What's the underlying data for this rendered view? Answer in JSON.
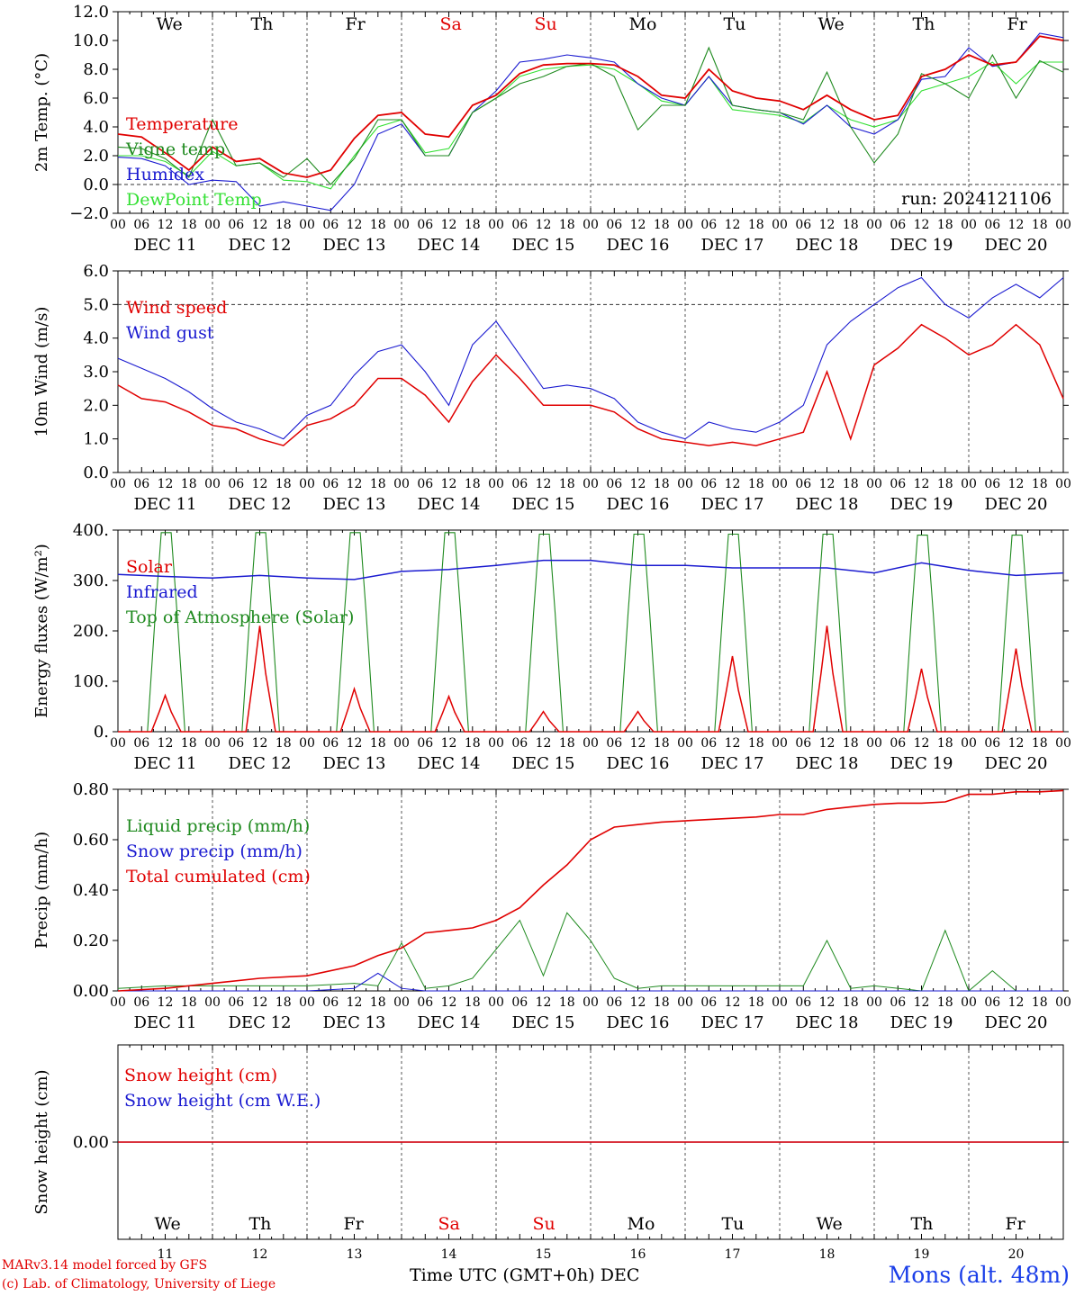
{
  "colors": {
    "red": "#e00000",
    "darkgreen": "#1f8a1f",
    "blue": "#1a1ad0",
    "lightgreen": "#33e033",
    "axis": "#000000"
  },
  "day_letters": [
    "We",
    "Th",
    "Fr",
    "Sa",
    "Su",
    "Mo",
    "Tu",
    "We",
    "Th",
    "Fr"
  ],
  "weekend_days": [
    "Sa",
    "Su"
  ],
  "date_labels": [
    "DEC 11",
    "DEC 12",
    "DEC 13",
    "DEC 14",
    "DEC 15",
    "DEC 16",
    "DEC 17",
    "DEC 18",
    "DEC 19",
    "DEC 20"
  ],
  "hour_ticks": [
    "00",
    "06",
    "12",
    "18"
  ],
  "footer": {
    "model": "MARv3.14 model forced by GFS",
    "lab": "(c) Lab. of Climatology, University of Liege",
    "time_axis": "Time UTC (GMT+0h)",
    "month": "DEC",
    "station": "Mons (alt. 48m)",
    "day_numbers": [
      "11",
      "12",
      "13",
      "14",
      "15",
      "16",
      "17",
      "18",
      "19",
      "20"
    ]
  },
  "chart_data": [
    {
      "type": "line",
      "ylabel": "2m Temp. (°C)",
      "ylim": [
        -2,
        12
      ],
      "yticks": [
        "12.0",
        "10.0",
        "8.0",
        "6.0",
        "4.0",
        "2.0",
        "0.0",
        "−2.0"
      ],
      "dashed_ref": 0,
      "annotation": "run: 2024121106",
      "series": [
        {
          "name": "Temperature",
          "color": "red",
          "x": [
            0,
            6,
            12,
            18,
            24,
            30,
            36,
            42,
            48,
            54,
            60,
            66,
            72,
            78,
            84,
            90,
            96,
            102,
            108,
            114,
            120,
            126,
            132,
            138,
            144,
            150,
            156,
            162,
            168,
            174,
            180,
            186,
            192,
            198,
            204,
            210,
            216,
            222,
            228,
            234,
            240
          ],
          "values": [
            3.5,
            3.3,
            2.2,
            1.0,
            2.6,
            1.6,
            1.8,
            0.8,
            0.5,
            1.0,
            3.2,
            4.8,
            5.0,
            3.5,
            3.3,
            5.5,
            6.2,
            7.7,
            8.3,
            8.4,
            8.4,
            8.3,
            7.5,
            6.2,
            6.0,
            8.0,
            6.5,
            6.0,
            5.8,
            5.2,
            6.2,
            5.2,
            4.5,
            4.8,
            7.5,
            8.0,
            9.0,
            8.3,
            8.5,
            10.3,
            10.0
          ]
        },
        {
          "name": "Vigne temp",
          "color": "darkgreen",
          "x": [
            0,
            6,
            12,
            18,
            24,
            30,
            36,
            42,
            48,
            54,
            60,
            66,
            72,
            78,
            84,
            90,
            96,
            102,
            108,
            114,
            120,
            126,
            132,
            138,
            144,
            150,
            156,
            162,
            168,
            174,
            180,
            186,
            192,
            198,
            204,
            210,
            216,
            222,
            228,
            234,
            240
          ],
          "values": [
            2.6,
            2.5,
            1.8,
            0.5,
            4.5,
            1.3,
            1.5,
            0.5,
            1.8,
            0.0,
            1.8,
            4.5,
            4.5,
            2.0,
            2.0,
            5.0,
            6.0,
            7.0,
            7.5,
            8.2,
            8.4,
            7.5,
            3.8,
            5.5,
            5.5,
            9.5,
            5.5,
            5.2,
            5.0,
            4.5,
            7.8,
            4.0,
            1.5,
            3.5,
            7.7,
            7.0,
            6.0,
            9.0,
            6.0,
            8.6,
            7.8
          ]
        },
        {
          "name": "Humidex",
          "color": "blue",
          "x": [
            0,
            6,
            12,
            18,
            24,
            30,
            36,
            42,
            48,
            54,
            60,
            66,
            72,
            78,
            84,
            90,
            96,
            102,
            108,
            114,
            120,
            126,
            132,
            138,
            144,
            150,
            156,
            162,
            168,
            174,
            180,
            186,
            192,
            198,
            204,
            210,
            216,
            222,
            228,
            234,
            240
          ],
          "values": [
            1.9,
            1.8,
            1.3,
            0.0,
            0.3,
            0.2,
            -1.5,
            -1.2,
            -1.5,
            -1.8,
            0.0,
            3.5,
            4.2,
            2.0,
            2.0,
            5.0,
            6.5,
            8.5,
            8.7,
            9.0,
            8.8,
            8.5,
            7.0,
            6.0,
            5.5,
            7.5,
            5.5,
            5.2,
            5.0,
            4.2,
            5.5,
            4.0,
            3.5,
            4.5,
            7.3,
            7.5,
            9.5,
            8.2,
            8.5,
            10.5,
            10.2
          ]
        },
        {
          "name": "DewPoint Temp",
          "color": "lightgreen",
          "x": [
            0,
            6,
            12,
            18,
            24,
            30,
            36,
            42,
            48,
            54,
            60,
            66,
            72,
            78,
            84,
            90,
            96,
            102,
            108,
            114,
            120,
            126,
            132,
            138,
            144,
            150,
            156,
            162,
            168,
            174,
            180,
            186,
            192,
            198,
            204,
            210,
            216,
            222,
            228,
            234,
            240
          ],
          "values": [
            2.0,
            2.0,
            1.6,
            0.6,
            2.3,
            1.3,
            1.5,
            0.3,
            0.2,
            -0.3,
            2.0,
            4.0,
            4.5,
            2.2,
            2.5,
            5.0,
            6.0,
            7.5,
            8.0,
            8.2,
            8.3,
            8.0,
            7.0,
            5.8,
            5.5,
            7.5,
            5.2,
            5.0,
            4.8,
            4.3,
            5.5,
            4.5,
            4.0,
            4.5,
            6.5,
            7.0,
            7.5,
            8.5,
            7.0,
            8.5,
            8.5
          ]
        }
      ]
    },
    {
      "type": "line",
      "ylabel": "10m Wind (m/s)",
      "ylim": [
        0,
        6
      ],
      "yticks": [
        "6.0",
        "5.0",
        "4.0",
        "3.0",
        "2.0",
        "1.0",
        "0.0"
      ],
      "dashed_ref": 5,
      "series": [
        {
          "name": "Wind speed",
          "color": "red",
          "x": [
            0,
            6,
            12,
            18,
            24,
            30,
            36,
            42,
            48,
            54,
            60,
            66,
            72,
            78,
            84,
            90,
            96,
            102,
            108,
            114,
            120,
            126,
            132,
            138,
            144,
            150,
            156,
            162,
            168,
            174,
            180,
            186,
            192,
            198,
            204,
            210,
            216,
            222,
            228,
            234,
            240
          ],
          "values": [
            2.6,
            2.2,
            2.1,
            1.8,
            1.4,
            1.3,
            1.0,
            0.8,
            1.4,
            1.6,
            2.0,
            2.8,
            2.8,
            2.3,
            1.5,
            2.7,
            3.5,
            2.8,
            2.0,
            2.0,
            2.0,
            1.8,
            1.3,
            1.0,
            0.9,
            0.8,
            0.9,
            0.8,
            1.0,
            1.2,
            3.0,
            1.0,
            3.2,
            3.7,
            4.4,
            4.0,
            3.5,
            3.8,
            4.4,
            3.8,
            2.2
          ]
        },
        {
          "name": "Wind gust",
          "color": "blue",
          "x": [
            0,
            6,
            12,
            18,
            24,
            30,
            36,
            42,
            48,
            54,
            60,
            66,
            72,
            78,
            84,
            90,
            96,
            102,
            108,
            114,
            120,
            126,
            132,
            138,
            144,
            150,
            156,
            162,
            168,
            174,
            180,
            186,
            192,
            198,
            204,
            210,
            216,
            222,
            228,
            234,
            240
          ],
          "values": [
            3.4,
            3.1,
            2.8,
            2.4,
            1.9,
            1.5,
            1.3,
            1.0,
            1.7,
            2.0,
            2.9,
            3.6,
            3.8,
            3.0,
            2.0,
            3.8,
            4.5,
            3.5,
            2.5,
            2.6,
            2.5,
            2.2,
            1.5,
            1.2,
            1.0,
            1.5,
            1.3,
            1.2,
            1.5,
            2.0,
            3.8,
            4.5,
            5.0,
            5.5,
            5.8,
            5.0,
            4.6,
            5.2,
            5.6,
            5.2,
            5.8
          ]
        }
      ]
    },
    {
      "type": "line",
      "ylabel": "Energy fluxes (W/m²)",
      "ylim": [
        0,
        400
      ],
      "yticks": [
        "400.",
        "300.",
        "200.",
        "100.",
        "0."
      ],
      "series": [
        {
          "name": "Solar",
          "color": "red",
          "peaks": [
            72,
            210,
            85,
            70,
            40,
            40,
            150,
            210,
            125,
            165
          ]
        },
        {
          "name": "Infrared",
          "color": "blue",
          "x": [
            0,
            12,
            24,
            36,
            48,
            60,
            72,
            84,
            96,
            108,
            120,
            132,
            144,
            156,
            168,
            180,
            192,
            204,
            216,
            228,
            240
          ],
          "values": [
            312,
            308,
            305,
            310,
            305,
            302,
            318,
            322,
            330,
            340,
            340,
            330,
            330,
            325,
            325,
            325,
            315,
            335,
            320,
            310,
            315
          ]
        },
        {
          "name": "Top of Atmosphere (Solar)",
          "color": "darkgreen",
          "peaks": [
            395,
            395,
            395,
            395,
            392,
            392,
            392,
            392,
            390,
            390
          ]
        }
      ]
    },
    {
      "type": "line",
      "ylabel": "Precip (mm/h)",
      "ylim": [
        0,
        0.8
      ],
      "yticks": [
        "0.80",
        "0.60",
        "0.40",
        "0.20",
        "0.00"
      ],
      "series": [
        {
          "name": "Liquid precip (mm/h)",
          "color": "darkgreen",
          "x": [
            0,
            12,
            24,
            36,
            48,
            60,
            66,
            72,
            78,
            84,
            90,
            102,
            108,
            114,
            120,
            126,
            132,
            138,
            150,
            162,
            174,
            180,
            186,
            192,
            204,
            210,
            216,
            222,
            228,
            240
          ],
          "values": [
            0.01,
            0.02,
            0.02,
            0.02,
            0.02,
            0.03,
            0.02,
            0.19,
            0.01,
            0.02,
            0.05,
            0.28,
            0.06,
            0.31,
            0.2,
            0.05,
            0.01,
            0.02,
            0.02,
            0.02,
            0.02,
            0.2,
            0.01,
            0.02,
            0.0,
            0.24,
            0.0,
            0.08,
            0.0,
            0.0
          ]
        },
        {
          "name": "Snow precip (mm/h)",
          "color": "blue",
          "x": [
            0,
            48,
            60,
            66,
            72,
            78,
            84,
            240
          ],
          "values": [
            0.0,
            0.0,
            0.01,
            0.07,
            0.01,
            0.0,
            0.0,
            0.0
          ]
        },
        {
          "name": "Total cumulated (cm)",
          "color": "red",
          "x": [
            0,
            12,
            24,
            36,
            48,
            60,
            66,
            72,
            78,
            84,
            90,
            96,
            102,
            108,
            114,
            120,
            126,
            132,
            138,
            150,
            162,
            168,
            174,
            180,
            186,
            192,
            198,
            204,
            210,
            216,
            222,
            228,
            234,
            240
          ],
          "values": [
            0.0,
            0.01,
            0.03,
            0.05,
            0.06,
            0.1,
            0.14,
            0.17,
            0.23,
            0.24,
            0.25,
            0.28,
            0.33,
            0.42,
            0.5,
            0.6,
            0.65,
            0.66,
            0.67,
            0.68,
            0.69,
            0.7,
            0.7,
            0.72,
            0.73,
            0.74,
            0.745,
            0.745,
            0.75,
            0.78,
            0.78,
            0.79,
            0.79,
            0.795
          ]
        }
      ]
    },
    {
      "type": "line",
      "ylabel": "Snow height (cm)",
      "ylim": [
        -1,
        1
      ],
      "yticks": [
        "0.00"
      ],
      "series": [
        {
          "name": "Snow height (cm)",
          "color": "red",
          "x": [
            0,
            240
          ],
          "values": [
            0,
            0
          ]
        },
        {
          "name": "Snow height (cm W.E.)",
          "color": "blue",
          "x": [
            0,
            240
          ],
          "values": [
            0,
            0
          ]
        }
      ]
    }
  ]
}
